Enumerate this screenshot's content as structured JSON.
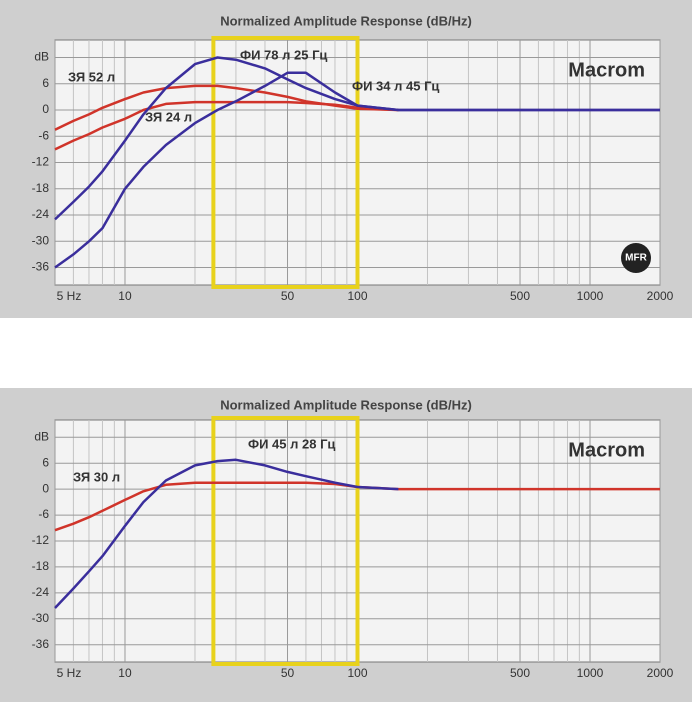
{
  "chart_data": [
    {
      "type": "line",
      "title": "Normalized Amplitude Response (dB/Hz)",
      "brand": "Macrom",
      "badge": "MFR",
      "log_x": true,
      "grid": true,
      "highlight": [
        24,
        100
      ],
      "highlight_color": "#e8d21c",
      "x": [
        5,
        6,
        7,
        8,
        10,
        12,
        15,
        20,
        25,
        30,
        40,
        50,
        60,
        80,
        100,
        150,
        200,
        500,
        1000,
        2000
      ],
      "series": [
        {
          "name": "ЗЯ 52 л",
          "color": "#d0342a",
          "values": [
            -4.5,
            -2.5,
            -1,
            0.5,
            2.5,
            4,
            5,
            5.5,
            5.5,
            5,
            4,
            3,
            2,
            1,
            0.3,
            0,
            null,
            null,
            null,
            null
          ]
        },
        {
          "name": "ЗЯ 24 л",
          "color": "#d0342a",
          "values": [
            -9,
            -7,
            -5.5,
            -4,
            -2,
            0,
            1.4,
            1.8,
            1.8,
            1.8,
            1.8,
            1.8,
            1.6,
            1.2,
            0.5,
            0,
            null,
            null,
            null,
            null
          ]
        },
        {
          "name": "ФИ 78 л 25 Гц",
          "color": "#3a2e9c",
          "values": [
            -25,
            -21,
            -17.5,
            -14,
            -7,
            -1,
            5,
            10.5,
            12,
            11.5,
            9.5,
            7,
            5,
            2.5,
            1,
            0,
            0,
            0,
            0,
            0
          ]
        },
        {
          "name": "ФИ 34 л 45 Гц",
          "color": "#3a2e9c",
          "values": [
            -36,
            -33,
            -30,
            -27,
            -18,
            -13,
            -8,
            -3,
            0,
            2,
            5.5,
            8.5,
            8.5,
            4,
            1,
            0,
            0,
            0,
            0,
            0
          ]
        }
      ],
      "xlim": [
        5,
        2000
      ],
      "ylim": [
        -40,
        16
      ],
      "xticks": [
        {
          "value": 5,
          "label": "5 Hz"
        },
        10,
        50,
        100,
        500,
        1000,
        2000
      ],
      "xgrid": [
        6,
        7,
        8,
        9,
        20,
        30,
        40,
        60,
        70,
        80,
        90,
        200,
        300,
        400,
        600,
        700,
        800,
        900
      ],
      "yticks": [
        {
          "value": 12,
          "label": "dB"
        },
        6,
        0,
        -6,
        -12,
        -18,
        -24,
        -30,
        -36
      ]
    },
    {
      "type": "line",
      "title": "Normalized Amplitude Response (dB/Hz)",
      "brand": "Macrom",
      "log_x": true,
      "grid": true,
      "highlight": [
        24,
        100
      ],
      "highlight_color": "#e8d21c",
      "x": [
        5,
        6,
        7,
        8,
        10,
        12,
        15,
        20,
        25,
        30,
        40,
        50,
        60,
        80,
        100,
        150,
        200,
        500,
        1000,
        2000
      ],
      "series": [
        {
          "name": "ЗЯ 30 л",
          "color": "#d0342a",
          "values": [
            -9.5,
            -8,
            -6.5,
            -5,
            -2.5,
            -0.5,
            1,
            1.5,
            1.5,
            1.5,
            1.5,
            1.5,
            1.5,
            1.2,
            0.5,
            0,
            0,
            0,
            0,
            0
          ]
        },
        {
          "name": "ФИ 45 л 28 Гц",
          "color": "#3a2e9c",
          "values": [
            -27.5,
            -23,
            -19,
            -15.5,
            -8.5,
            -3,
            2,
            5.5,
            6.5,
            6.8,
            5.5,
            4,
            3,
            1.5,
            0.5,
            0,
            null,
            null,
            null,
            null
          ]
        }
      ],
      "xlim": [
        5,
        2000
      ],
      "ylim": [
        -40,
        16
      ],
      "xticks": [
        {
          "value": 5,
          "label": "5 Hz"
        },
        10,
        50,
        100,
        500,
        1000,
        2000
      ],
      "xgrid": [
        6,
        7,
        8,
        9,
        20,
        30,
        40,
        60,
        70,
        80,
        90,
        200,
        300,
        400,
        600,
        700,
        800,
        900
      ],
      "yticks": [
        {
          "value": 12,
          "label": "dB"
        },
        6,
        0,
        -6,
        -12,
        -18,
        -24,
        -30,
        -36
      ]
    }
  ]
}
